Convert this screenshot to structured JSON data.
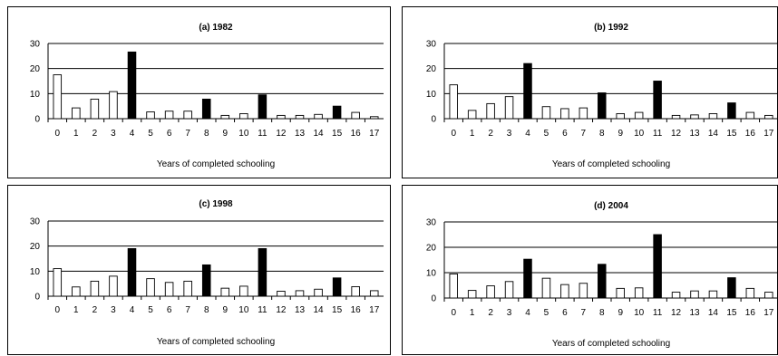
{
  "chart_data": [
    {
      "type": "bar",
      "title": "(a) 1982",
      "xlabel": "Years of completed schooling",
      "ylabel": "",
      "ylim": [
        0,
        30
      ],
      "yticks": [
        0,
        10,
        20,
        30
      ],
      "grid": true,
      "categories": [
        "0",
        "1",
        "2",
        "3",
        "4",
        "5",
        "6",
        "7",
        "8",
        "9",
        "10",
        "11",
        "12",
        "13",
        "14",
        "15",
        "16",
        "17"
      ],
      "values": [
        17.5,
        4.3,
        7.8,
        10.8,
        26.6,
        2.7,
        3.0,
        3.0,
        7.8,
        1.3,
        2.0,
        9.5,
        1.3,
        1.3,
        1.7,
        5.0,
        2.5,
        0.8
      ],
      "highlight_categories": [
        "4",
        "8",
        "11",
        "15"
      ],
      "colors": {
        "bar_fill": "#ffffff",
        "highlight_fill": "#000000",
        "bar_stroke": "#000000",
        "grid": "#000000"
      }
    },
    {
      "type": "bar",
      "title": "(b) 1992",
      "xlabel": "Years of completed schooling",
      "ylabel": "",
      "ylim": [
        0,
        30
      ],
      "yticks": [
        0,
        10,
        20,
        30
      ],
      "grid": true,
      "categories": [
        "0",
        "1",
        "2",
        "3",
        "4",
        "5",
        "6",
        "7",
        "8",
        "9",
        "10",
        "11",
        "12",
        "13",
        "14",
        "15",
        "16",
        "17"
      ],
      "values": [
        13.5,
        3.3,
        6.0,
        8.8,
        22.0,
        4.8,
        4.0,
        4.3,
        10.3,
        2.0,
        2.5,
        15.0,
        1.3,
        1.5,
        2.0,
        6.3,
        2.5,
        1.3
      ],
      "highlight_categories": [
        "4",
        "8",
        "11",
        "15"
      ],
      "colors": {
        "bar_fill": "#ffffff",
        "highlight_fill": "#000000",
        "bar_stroke": "#000000",
        "grid": "#000000"
      }
    },
    {
      "type": "bar",
      "title": "(c) 1998",
      "xlabel": "Years of completed schooling",
      "ylabel": "",
      "ylim": [
        0,
        30
      ],
      "yticks": [
        0,
        10,
        20,
        30
      ],
      "grid": true,
      "categories": [
        "0",
        "1",
        "2",
        "3",
        "4",
        "5",
        "6",
        "7",
        "8",
        "9",
        "10",
        "11",
        "12",
        "13",
        "14",
        "15",
        "16",
        "17"
      ],
      "values": [
        11.0,
        3.7,
        6.0,
        8.0,
        19.0,
        7.0,
        5.5,
        6.0,
        12.5,
        3.2,
        4.0,
        19.0,
        2.0,
        2.2,
        2.8,
        7.3,
        3.8,
        2.2
      ],
      "highlight_categories": [
        "4",
        "8",
        "11",
        "15"
      ],
      "colors": {
        "bar_fill": "#ffffff",
        "highlight_fill": "#000000",
        "bar_stroke": "#000000",
        "grid": "#000000"
      }
    },
    {
      "type": "bar",
      "title": "(d) 2004",
      "xlabel": "Years of completed schooling",
      "ylabel": "",
      "ylim": [
        0,
        30
      ],
      "yticks": [
        0,
        10,
        20,
        30
      ],
      "grid": true,
      "categories": [
        "0",
        "1",
        "2",
        "3",
        "4",
        "5",
        "6",
        "7",
        "8",
        "9",
        "10",
        "11",
        "12",
        "13",
        "14",
        "15",
        "16",
        "17"
      ],
      "values": [
        9.5,
        3.0,
        4.8,
        6.5,
        15.3,
        7.8,
        5.3,
        5.8,
        13.3,
        3.8,
        4.0,
        25.0,
        2.3,
        2.8,
        2.8,
        8.0,
        3.8,
        2.3
      ],
      "highlight_categories": [
        "4",
        "8",
        "11",
        "15"
      ],
      "colors": {
        "bar_fill": "#ffffff",
        "highlight_fill": "#000000",
        "bar_stroke": "#000000",
        "grid": "#000000"
      }
    }
  ]
}
